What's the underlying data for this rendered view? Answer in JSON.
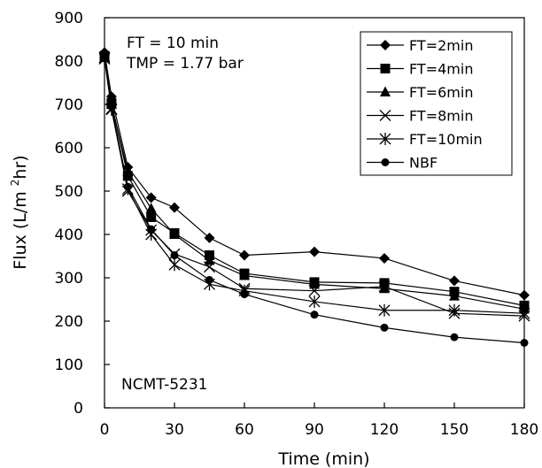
{
  "chart_data": {
    "type": "line",
    "title": "",
    "xlabel": "Time (min)",
    "ylabel_main": "Flux (L/m",
    "ylabel_sup": "2",
    "ylabel_tail": "hr)",
    "xlim": [
      0,
      180
    ],
    "ylim": [
      0,
      900
    ],
    "x_ticks": [
      0,
      30,
      60,
      90,
      120,
      150,
      180
    ],
    "y_ticks": [
      0,
      100,
      200,
      300,
      400,
      500,
      600,
      700,
      800,
      900
    ],
    "grid": false,
    "legend_position": "top-right",
    "annotations": {
      "ft": "FT = 10 min",
      "tmp": "TMP = 1.77 bar",
      "membrane": "NCMT-5231"
    },
    "series": [
      {
        "name": "FT=2min",
        "marker": "diamond",
        "x": [
          0,
          3,
          10,
          20,
          30,
          45,
          60,
          90,
          120,
          150,
          180
        ],
        "y": [
          820,
          718,
          555,
          485,
          462,
          392,
          352,
          360,
          345,
          293,
          260
        ]
      },
      {
        "name": "FT=4min",
        "marker": "square",
        "x": [
          0,
          3,
          10,
          20,
          30,
          45,
          60,
          90,
          120,
          150,
          180
        ],
        "y": [
          812,
          703,
          535,
          440,
          403,
          352,
          310,
          290,
          288,
          268,
          236
        ]
      },
      {
        "name": "FT=6min",
        "marker": "triangle",
        "x": [
          0,
          3,
          10,
          20,
          30,
          45,
          60,
          90,
          120,
          150,
          180
        ],
        "y": [
          808,
          700,
          545,
          460,
          400,
          340,
          305,
          285,
          275,
          258,
          228
        ]
      },
      {
        "name": "FT=8min",
        "marker": "x",
        "x": [
          0,
          3,
          10,
          20,
          30,
          45,
          60,
          90,
          120,
          150,
          180
        ],
        "y": [
          805,
          690,
          500,
          410,
          355,
          325,
          275,
          270,
          280,
          218,
          212
        ]
      },
      {
        "name": "FT=10min",
        "marker": "star",
        "x": [
          0,
          3,
          10,
          20,
          30,
          45,
          60,
          90,
          120,
          150,
          180
        ],
        "y": [
          808,
          688,
          505,
          400,
          330,
          285,
          270,
          245,
          225,
          225,
          218
        ]
      },
      {
        "name": "NBF",
        "marker": "circle",
        "x": [
          0,
          3,
          10,
          20,
          30,
          45,
          60,
          90,
          120,
          150,
          180
        ],
        "y": [
          815,
          695,
          510,
          412,
          352,
          295,
          262,
          215,
          185,
          163,
          150
        ]
      }
    ]
  }
}
